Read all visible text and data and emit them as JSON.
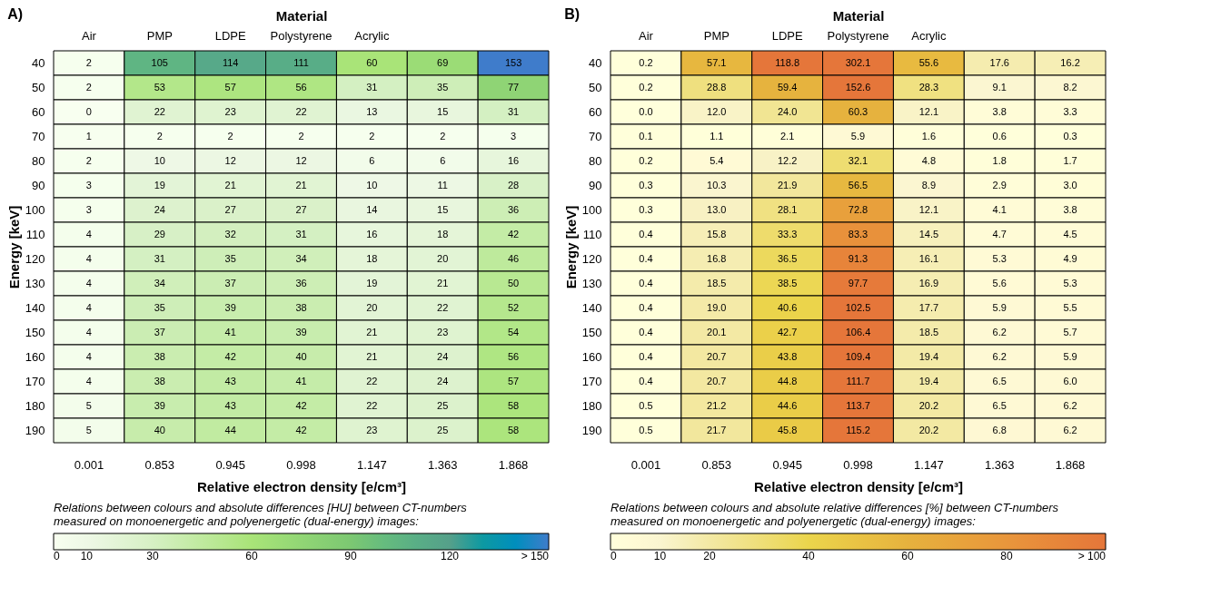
{
  "chart_data": [
    {
      "type": "heatmap",
      "title": "A)",
      "x2label": "Material",
      "xlabel": "Relative electron density [e/cm³]",
      "ylabel": "Energy [keV]",
      "clabel": "Relations between colours and absolute differences [HU] between CT-numbers measured on monoenergetic and polyenergetic (dual-energy) images:",
      "categories": [
        "Air",
        "PMP",
        "LDPE",
        "Polystyrene",
        "Acrylic",
        null,
        null
      ],
      "y_categories": [
        "40",
        "50",
        "60",
        "70",
        "80",
        "90",
        "100",
        "110",
        "120",
        "130",
        "140",
        "150",
        "160",
        "170",
        "180",
        "190"
      ],
      "annotations": [
        "0.001",
        "0.853",
        "0.945",
        "0.998",
        "1.147",
        "1.363",
        "1.868"
      ],
      "cells": [
        [
          2,
          105,
          114,
          111,
          60,
          69,
          153
        ],
        [
          2,
          53,
          57,
          56,
          31,
          35,
          77
        ],
        [
          0,
          22,
          23,
          22,
          13,
          15,
          31
        ],
        [
          1,
          2,
          2,
          2,
          2,
          2,
          3
        ],
        [
          2,
          10,
          12,
          12,
          6,
          6,
          16
        ],
        [
          3,
          19,
          21,
          21,
          10,
          11,
          28
        ],
        [
          3,
          24,
          27,
          27,
          14,
          15,
          36
        ],
        [
          4,
          29,
          32,
          31,
          16,
          18,
          42
        ],
        [
          4,
          31,
          35,
          34,
          18,
          20,
          46
        ],
        [
          4,
          34,
          37,
          36,
          19,
          21,
          50
        ],
        [
          4,
          35,
          39,
          38,
          20,
          22,
          52
        ],
        [
          4,
          37,
          41,
          39,
          21,
          23,
          54
        ],
        [
          4,
          38,
          42,
          40,
          21,
          24,
          56
        ],
        [
          4,
          38,
          43,
          41,
          22,
          24,
          57
        ],
        [
          5,
          39,
          43,
          42,
          22,
          25,
          58
        ],
        [
          5,
          40,
          44,
          42,
          23,
          25,
          58
        ]
      ],
      "data_labels": true,
      "clim": [
        0,
        150
      ],
      "cticks": [
        0,
        10,
        30,
        60,
        90,
        120,
        {
          "value": 150,
          "label": "> 150"
        }
      ],
      "colors": [
        "#ffffff",
        "#eef8e6",
        "#d6f0c4",
        "#a9e478",
        "#7cc872",
        "#55a08a",
        "#3f7ccb"
      ]
    },
    {
      "type": "heatmap",
      "title": "B)",
      "x2label": "Material",
      "xlabel": "Relative electron density [e/cm³]",
      "ylabel": "Energy [keV]",
      "clabel": "Relations between colours and absolute relative differences [%] between CT-numbers measured on monoenergetic and polyenergetic (dual-energy) images:",
      "categories": [
        "Air",
        "PMP",
        "LDPE",
        "Polystyrene",
        "Acrylic",
        null,
        null
      ],
      "y_categories": [
        "40",
        "50",
        "60",
        "70",
        "80",
        "90",
        "100",
        "110",
        "120",
        "130",
        "140",
        "150",
        "160",
        "170",
        "180",
        "190"
      ],
      "annotations": [
        "0.001",
        "0.853",
        "0.945",
        "0.998",
        "1.147",
        "1.363",
        "1.868"
      ],
      "cells": [
        [
          0.2,
          57.1,
          118.8,
          302.1,
          55.6,
          17.6,
          16.2
        ],
        [
          0.2,
          28.8,
          59.4,
          152.6,
          28.3,
          9.1,
          8.2
        ],
        [
          0.0,
          12.0,
          24.0,
          60.3,
          12.1,
          3.8,
          3.3
        ],
        [
          0.1,
          1.1,
          2.1,
          5.9,
          1.6,
          0.6,
          0.3
        ],
        [
          0.2,
          5.4,
          12.2,
          32.1,
          4.8,
          1.8,
          1.7
        ],
        [
          0.3,
          10.3,
          21.9,
          56.5,
          8.9,
          2.9,
          3.0
        ],
        [
          0.3,
          13.0,
          28.1,
          72.8,
          12.1,
          4.1,
          3.8
        ],
        [
          0.4,
          15.8,
          33.3,
          83.3,
          14.5,
          4.7,
          4.5
        ],
        [
          0.4,
          16.8,
          36.5,
          91.3,
          16.1,
          5.3,
          4.9
        ],
        [
          0.4,
          18.5,
          38.5,
          97.7,
          16.9,
          5.6,
          5.3
        ],
        [
          0.4,
          19.0,
          40.6,
          102.5,
          17.7,
          5.9,
          5.5
        ],
        [
          0.4,
          20.1,
          42.7,
          106.4,
          18.5,
          6.2,
          5.7
        ],
        [
          0.4,
          20.7,
          43.8,
          109.4,
          19.4,
          6.2,
          5.9
        ],
        [
          0.4,
          20.7,
          44.8,
          111.7,
          19.4,
          6.5,
          6.0
        ],
        [
          0.5,
          21.2,
          44.6,
          113.7,
          20.2,
          6.5,
          6.2
        ],
        [
          0.5,
          21.7,
          45.8,
          115.2,
          20.2,
          6.8,
          6.2
        ]
      ],
      "cell_labels": [
        [
          "0.2",
          "57.1",
          "118.8",
          "302.1",
          "55.6",
          "17.6",
          "16.2"
        ],
        [
          "0.2",
          "28.8",
          "59.4",
          "152.6",
          "28.3",
          "9.1",
          "8.2"
        ],
        [
          "0.0",
          "12.0",
          "24.0",
          "60.3",
          "12.1",
          "3.8",
          "3.3"
        ],
        [
          "0.1",
          "1.1",
          "2.1",
          "5.9",
          "1.6",
          "0.6",
          "0.3"
        ],
        [
          "0.2",
          "5.4",
          "12.2",
          "32.1",
          "4.8",
          "1.8",
          "1.7"
        ],
        [
          "0.3",
          "10.3",
          "21.9",
          "56.5",
          "8.9",
          "2.9",
          "3.0"
        ],
        [
          "0.3",
          "13.0",
          "28.1",
          "72.8",
          "12.1",
          "4.1",
          "3.8"
        ],
        [
          "0.4",
          "15.8",
          "33.3",
          "83.3",
          "14.5",
          "4.7",
          "4.5"
        ],
        [
          "0.4",
          "16.8",
          "36.5",
          "91.3",
          "16.1",
          "5.3",
          "4.9"
        ],
        [
          "0.4",
          "18.5",
          "38.5",
          "97.7",
          "16.9",
          "5.6",
          "5.3"
        ],
        [
          "0.4",
          "19.0",
          "40.6",
          "102.5",
          "17.7",
          "5.9",
          "5.5"
        ],
        [
          "0.4",
          "20.1",
          "42.7",
          "106.4",
          "18.5",
          "6.2",
          "5.7"
        ],
        [
          "0.4",
          "20.7",
          "43.8",
          "109.4",
          "19.4",
          "6.2",
          "5.9"
        ],
        [
          "0.4",
          "20.7",
          "44.8",
          "111.7",
          "19.4",
          "6.5",
          "6.0"
        ],
        [
          "0.5",
          "21.2",
          "44.6",
          "113.7",
          "20.2",
          "6.5",
          "6.2"
        ],
        [
          "0.5",
          "21.7",
          "45.8",
          "115.2",
          "20.2",
          "6.8",
          "6.2"
        ]
      ],
      "clim": [
        0,
        100
      ],
      "cticks": [
        0,
        10,
        20,
        40,
        60,
        80,
        {
          "value": 100,
          "label": "> 100"
        }
      ],
      "colors": [
        "#ffffff",
        "#faf5d0",
        "#f3e9a4",
        "#ebd54c",
        "#e6b23e",
        "#e8963c",
        "#e5763a"
      ]
    }
  ]
}
